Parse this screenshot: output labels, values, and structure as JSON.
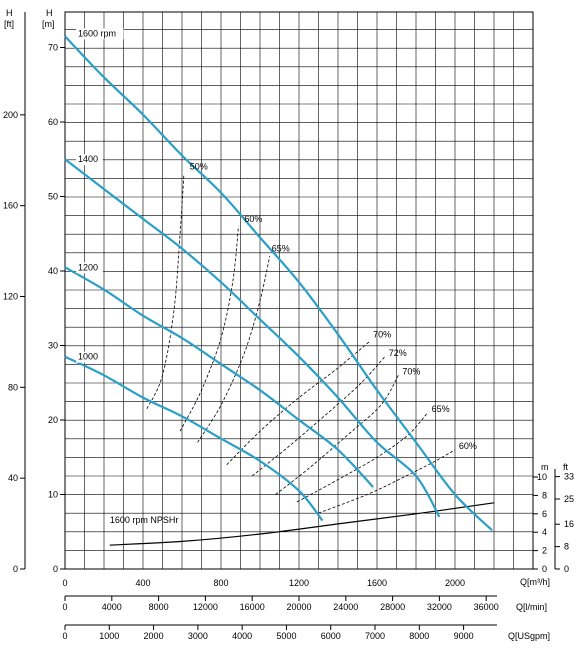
{
  "chart_data": {
    "type": "line",
    "axes": {
      "x_flow_m3h": {
        "label": "Q[m³/h]",
        "min": 0,
        "max": 2200,
        "ticks": [
          0,
          400,
          800,
          1200,
          1600,
          2000
        ]
      },
      "x_flow_lmin": {
        "label": "Q[l/min]",
        "ticks": [
          0,
          4000,
          8000,
          12000,
          16000,
          20000,
          24000,
          28000,
          32000,
          36000
        ]
      },
      "x_flow_usgpm": {
        "label": "Q[USgpm]",
        "ticks": [
          0,
          1000,
          2000,
          3000,
          4000,
          5000,
          6000,
          7000,
          8000,
          9000
        ]
      },
      "y_head_m": {
        "label_top": "H",
        "label_unit": "[m]",
        "min": 0,
        "max": 75,
        "ticks": [
          0,
          10,
          20,
          30,
          40,
          50,
          60,
          70
        ]
      },
      "y_head_ft": {
        "label_top": "H",
        "label_unit": "[ft]",
        "ticks": [
          0,
          40,
          80,
          120,
          160,
          200
        ]
      },
      "npsh_m": {
        "label": "m",
        "ticks": [
          0,
          2,
          4,
          6,
          8,
          10
        ]
      },
      "npsh_ft": {
        "label": "ft",
        "ticks": [
          0,
          8,
          16,
          25,
          33
        ]
      }
    },
    "grid": true,
    "pump_curves": [
      {
        "name": "1600 rpm",
        "points": [
          [
            0,
            71.5
          ],
          [
            200,
            66
          ],
          [
            400,
            61
          ],
          [
            600,
            55.5
          ],
          [
            800,
            50.5
          ],
          [
            1000,
            44.5
          ],
          [
            1200,
            38.5
          ],
          [
            1400,
            31.5
          ],
          [
            1600,
            24
          ],
          [
            1800,
            17
          ],
          [
            2000,
            10
          ],
          [
            2190,
            5.2
          ]
        ]
      },
      {
        "name": "1400",
        "points": [
          [
            0,
            55
          ],
          [
            200,
            51
          ],
          [
            400,
            47
          ],
          [
            600,
            43
          ],
          [
            800,
            38.5
          ],
          [
            1000,
            33.5
          ],
          [
            1200,
            28.5
          ],
          [
            1400,
            23
          ],
          [
            1600,
            17
          ],
          [
            1800,
            12.5
          ],
          [
            1920,
            7
          ]
        ]
      },
      {
        "name": "1200",
        "points": [
          [
            0,
            40.5
          ],
          [
            200,
            37.5
          ],
          [
            400,
            34
          ],
          [
            600,
            31
          ],
          [
            800,
            27.5
          ],
          [
            1000,
            24
          ],
          [
            1200,
            20
          ],
          [
            1400,
            16
          ],
          [
            1580,
            11
          ]
        ]
      },
      {
        "name": "1000",
        "points": [
          [
            0,
            28.5
          ],
          [
            200,
            26
          ],
          [
            400,
            23
          ],
          [
            600,
            20.5
          ],
          [
            800,
            17.5
          ],
          [
            1000,
            14.5
          ],
          [
            1200,
            10.5
          ],
          [
            1320,
            6.5
          ]
        ]
      }
    ],
    "efficiency_curves": [
      {
        "name": "50%",
        "label_at": [
          640,
          54
        ],
        "points": [
          [
            420,
            21.5
          ],
          [
            500,
            26
          ],
          [
            560,
            35
          ],
          [
            590,
            45
          ],
          [
            610,
            53
          ]
        ]
      },
      {
        "name": "60%",
        "label_at": [
          920,
          47
        ],
        "points": [
          [
            590,
            18.5
          ],
          [
            700,
            24
          ],
          [
            800,
            31
          ],
          [
            860,
            38.5
          ],
          [
            890,
            46
          ]
        ]
      },
      {
        "name": "65%",
        "label_at": [
          1060,
          43
        ],
        "points": [
          [
            680,
            17
          ],
          [
            800,
            22
          ],
          [
            920,
            29
          ],
          [
            1000,
            36
          ],
          [
            1050,
            42
          ]
        ]
      },
      {
        "name": "70%",
        "label_at": [
          1580,
          31.5
        ],
        "points": [
          [
            830,
            14
          ],
          [
            1000,
            18.5
          ],
          [
            1200,
            23
          ],
          [
            1400,
            27
          ],
          [
            1560,
            30.5
          ]
        ]
      },
      {
        "name": "72%",
        "label_at": [
          1660,
          29
        ],
        "points": [
          [
            960,
            12.5
          ],
          [
            1150,
            16.5
          ],
          [
            1350,
            21
          ],
          [
            1520,
            25
          ],
          [
            1640,
            28.5
          ]
        ]
      },
      {
        "name": "70%",
        "label_at": [
          1730,
          26.5
        ],
        "points": [
          [
            1080,
            10
          ],
          [
            1250,
            13.5
          ],
          [
            1450,
            18
          ],
          [
            1620,
            22
          ],
          [
            1710,
            26
          ]
        ]
      },
      {
        "name": "65%",
        "label_at": [
          1880,
          21.5
        ],
        "points": [
          [
            1190,
            9
          ],
          [
            1400,
            12
          ],
          [
            1600,
            15
          ],
          [
            1760,
            18
          ],
          [
            1860,
            21
          ]
        ]
      },
      {
        "name": "60%",
        "label_at": [
          2020,
          16.5
        ],
        "points": [
          [
            1300,
            7.5
          ],
          [
            1550,
            10
          ],
          [
            1750,
            12.5
          ],
          [
            1900,
            14.5
          ],
          [
            2000,
            16
          ]
        ]
      }
    ],
    "npsh_curves": [
      {
        "name": "1600 rpm NPSHr",
        "points": [
          [
            230,
            2.6
          ],
          [
            600,
            3.0
          ],
          [
            1000,
            3.8
          ],
          [
            1400,
            4.9
          ],
          [
            1800,
            6.0
          ],
          [
            2200,
            7.2
          ]
        ]
      }
    ]
  }
}
